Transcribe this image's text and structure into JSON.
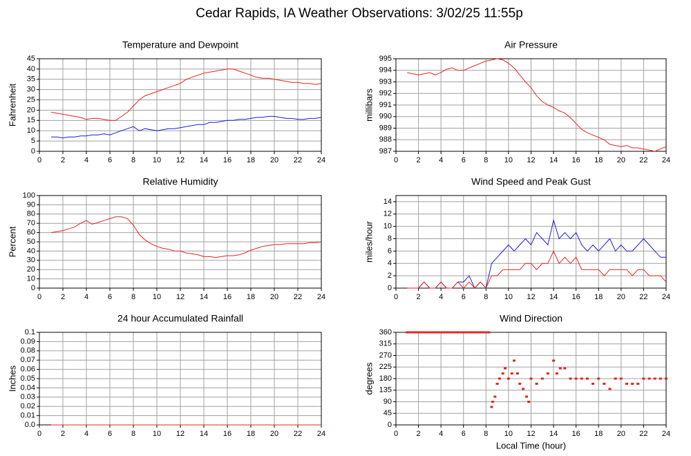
{
  "title": "Cedar Rapids, IA Weather Observations: 3/02/25 11:55p",
  "chart_data": [
    {
      "type": "line",
      "title": "Temperature and Dewpoint",
      "ylabel": "Fahrenheit",
      "x": [
        1,
        1.5,
        2,
        2.5,
        3,
        3.5,
        4,
        4.5,
        5,
        5.5,
        6,
        6.5,
        7,
        7.5,
        8,
        8.5,
        9,
        9.5,
        10,
        10.5,
        11,
        11.5,
        12,
        12.5,
        13,
        13.5,
        14,
        14.5,
        15,
        15.5,
        16,
        16.5,
        17,
        17.5,
        18,
        18.5,
        19,
        19.5,
        20,
        20.5,
        21,
        21.5,
        22,
        22.5,
        23,
        23.5,
        24
      ],
      "series": [
        {
          "color": "#e8211d",
          "values": [
            19,
            18.5,
            18,
            17.5,
            17,
            16.5,
            15.5,
            16,
            16,
            15.5,
            15,
            15,
            17,
            19,
            22,
            25,
            27,
            28,
            29,
            30,
            31,
            32,
            33,
            35,
            36,
            37,
            38,
            38.5,
            39,
            39.5,
            40,
            40,
            39,
            38,
            37,
            36,
            35.5,
            35.5,
            35,
            34.5,
            34,
            33.5,
            33.5,
            33,
            33,
            32.5,
            33
          ]
        },
        {
          "color": "#1a1ad8",
          "values": [
            7,
            7,
            6.5,
            7,
            7,
            7.5,
            7.5,
            8,
            8,
            8.5,
            8,
            9,
            10,
            11,
            12,
            10,
            11,
            10.5,
            10,
            10.5,
            11,
            11,
            11.5,
            12,
            12.5,
            13,
            13,
            14,
            14,
            14.5,
            15,
            15,
            15.5,
            15.5,
            16,
            16.5,
            16.5,
            17,
            17,
            16.5,
            16,
            16,
            15.5,
            15.5,
            16,
            16,
            16.5
          ]
        }
      ],
      "xlim": [
        0,
        24
      ],
      "xticks": [
        0,
        2,
        4,
        6,
        8,
        10,
        12,
        14,
        16,
        18,
        20,
        22,
        24
      ],
      "ylim": [
        0,
        45
      ],
      "yticks": [
        0,
        5,
        10,
        15,
        20,
        25,
        30,
        35,
        40,
        45
      ],
      "grid": true
    },
    {
      "type": "line",
      "title": "Air Pressure",
      "ylabel": "millibars",
      "x": [
        1,
        1.5,
        2,
        2.5,
        3,
        3.5,
        4,
        4.5,
        5,
        5.5,
        6,
        6.5,
        7,
        7.5,
        8,
        8.5,
        9,
        9.5,
        10,
        10.5,
        11,
        11.5,
        12,
        12.5,
        13,
        13.5,
        14,
        14.5,
        15,
        15.5,
        16,
        16.5,
        17,
        17.5,
        18,
        18.5,
        19,
        19.5,
        20,
        20.5,
        21,
        21.5,
        22,
        22.5,
        23,
        23.5,
        24
      ],
      "series": [
        {
          "color": "#e8211d",
          "values": [
            993.8,
            993.7,
            993.6,
            993.7,
            993.8,
            993.6,
            993.8,
            994.1,
            994.2,
            994,
            994,
            994.2,
            994.4,
            994.6,
            994.8,
            994.9,
            995,
            994.9,
            994.6,
            994.2,
            993.6,
            993,
            992.5,
            991.8,
            991.3,
            991,
            990.8,
            990.5,
            990.3,
            989.9,
            989.4,
            988.9,
            988.6,
            988.4,
            988.2,
            988,
            987.6,
            987.5,
            987.4,
            987.5,
            987.3,
            987.3,
            987.2,
            987.1,
            987,
            987.2,
            987.4
          ]
        }
      ],
      "xlim": [
        0,
        24
      ],
      "xticks": [
        0,
        2,
        4,
        6,
        8,
        10,
        12,
        14,
        16,
        18,
        20,
        22,
        24
      ],
      "ylim": [
        987,
        995
      ],
      "yticks": [
        987,
        988,
        989,
        990,
        991,
        992,
        993,
        994,
        995
      ],
      "grid": true
    },
    {
      "type": "line",
      "title": "Relative Humidity",
      "ylabel": "Percent",
      "x": [
        1,
        1.5,
        2,
        2.5,
        3,
        3.5,
        4,
        4.5,
        5,
        5.5,
        6,
        6.5,
        7,
        7.5,
        8,
        8.5,
        9,
        9.5,
        10,
        10.5,
        11,
        11.5,
        12,
        12.5,
        13,
        13.5,
        14,
        14.5,
        15,
        15.5,
        16,
        16.5,
        17,
        17.5,
        18,
        18.5,
        19,
        19.5,
        20,
        20.5,
        21,
        21.5,
        22,
        22.5,
        23,
        23.5,
        24
      ],
      "series": [
        {
          "color": "#e8211d",
          "values": [
            60,
            61,
            62,
            64,
            66,
            70,
            73,
            69,
            71,
            73,
            75,
            77,
            77,
            75,
            68,
            58,
            52,
            48,
            45,
            43,
            42,
            40,
            40,
            38,
            37,
            36,
            34,
            34,
            33,
            34,
            35,
            35,
            36,
            38,
            41,
            43,
            45,
            46,
            47,
            47,
            48,
            48,
            48,
            48,
            49,
            49,
            50
          ]
        }
      ],
      "xlim": [
        0,
        24
      ],
      "xticks": [
        0,
        2,
        4,
        6,
        8,
        10,
        12,
        14,
        16,
        18,
        20,
        22,
        24
      ],
      "ylim": [
        0,
        100
      ],
      "yticks": [
        0,
        10,
        20,
        30,
        40,
        50,
        60,
        70,
        80,
        90,
        100
      ],
      "grid": true
    },
    {
      "type": "line",
      "title": "Wind Speed and Peak Gust",
      "ylabel": "miles/hour",
      "x": [
        1,
        1.5,
        2,
        2.5,
        3,
        3.5,
        4,
        4.5,
        5,
        5.5,
        6,
        6.5,
        7,
        7.5,
        8,
        8.5,
        9,
        9.5,
        10,
        10.5,
        11,
        11.5,
        12,
        12.5,
        13,
        13.5,
        14,
        14.5,
        15,
        15.5,
        16,
        16.5,
        17,
        17.5,
        18,
        18.5,
        19,
        19.5,
        20,
        20.5,
        21,
        21.5,
        22,
        22.5,
        23,
        23.5,
        24
      ],
      "series": [
        {
          "color": "#1a1ad8",
          "values": [
            0,
            0,
            0,
            1,
            0,
            0,
            1,
            0,
            0,
            1,
            1,
            2,
            0,
            1,
            0,
            4,
            5,
            6,
            7,
            6,
            7,
            8,
            7,
            9,
            8,
            7,
            11,
            8,
            9,
            8,
            9,
            7,
            6,
            7,
            6,
            7,
            8,
            6,
            7,
            6,
            6,
            7,
            8,
            7,
            6,
            5,
            5
          ]
        },
        {
          "color": "#e8211d",
          "values": [
            0,
            0,
            0,
            1,
            0,
            0,
            1,
            0,
            0,
            1,
            0,
            1,
            0,
            1,
            0,
            2,
            2,
            3,
            3,
            3,
            3,
            4,
            4,
            3,
            4,
            4,
            6,
            4,
            5,
            4,
            5,
            3,
            3,
            3,
            3,
            2,
            3,
            3,
            3,
            3,
            2,
            3,
            3,
            2,
            2,
            2,
            1
          ]
        }
      ],
      "xlim": [
        0,
        24
      ],
      "xticks": [
        0,
        2,
        4,
        6,
        8,
        10,
        12,
        14,
        16,
        18,
        20,
        22,
        24
      ],
      "ylim": [
        0,
        15
      ],
      "yticks": [
        0,
        2,
        4,
        6,
        8,
        10,
        12,
        14
      ],
      "grid": true
    },
    {
      "type": "line",
      "title": "24 hour Accumulated Rainfall",
      "ylabel": "Inches",
      "x": [
        1,
        24
      ],
      "series": [
        {
          "color": "#e8211d",
          "values": [
            0,
            0
          ]
        }
      ],
      "xlim": [
        0,
        24
      ],
      "xticks": [
        0,
        2,
        4,
        6,
        8,
        10,
        12,
        14,
        16,
        18,
        20,
        22,
        24
      ],
      "ylim": [
        0,
        0.1
      ],
      "yticks": [
        {
          "value": 0,
          "label": "0.0"
        },
        0.01,
        0.02,
        0.03,
        0.04,
        0.05,
        0.06,
        0.07,
        0.08,
        0.09,
        0.1
      ],
      "grid": true
    },
    {
      "type": "scatter",
      "title": "Wind Direction",
      "ylabel": "degrees",
      "xlabel": "Local Time (hour)",
      "x": [
        1,
        1.25,
        1.5,
        1.75,
        2,
        2.25,
        2.5,
        2.75,
        3,
        3.25,
        3.5,
        3.75,
        4,
        4.25,
        4.5,
        4.75,
        5,
        5.25,
        5.5,
        5.75,
        6,
        6.25,
        6.5,
        6.75,
        7,
        7.25,
        7.5,
        7.75,
        8,
        8.25,
        8.5,
        8.6,
        8.8,
        9,
        9.2,
        9.5,
        9.7,
        10,
        10.3,
        10.5,
        10.8,
        11,
        11.3,
        11.6,
        11.8,
        12,
        12.5,
        13,
        13.5,
        14,
        14.3,
        14.6,
        15,
        15.5,
        16,
        16.5,
        17,
        17.5,
        18,
        18.5,
        19,
        19.5,
        20,
        20.5,
        21,
        21.5,
        22,
        22.5,
        23,
        23.5,
        24
      ],
      "series": [
        {
          "color": "#e8211d",
          "values": [
            360,
            360,
            360,
            360,
            360,
            360,
            360,
            360,
            360,
            360,
            360,
            360,
            360,
            360,
            360,
            360,
            360,
            360,
            360,
            360,
            360,
            360,
            360,
            360,
            360,
            360,
            360,
            360,
            360,
            360,
            70,
            90,
            110,
            160,
            180,
            200,
            220,
            180,
            200,
            250,
            200,
            160,
            140,
            110,
            90,
            180,
            160,
            180,
            200,
            250,
            200,
            220,
            220,
            180,
            180,
            180,
            180,
            160,
            180,
            160,
            140,
            180,
            180,
            160,
            160,
            160,
            180,
            180,
            180,
            180,
            180
          ]
        }
      ],
      "xlim": [
        0,
        24
      ],
      "xticks": [
        0,
        2,
        4,
        6,
        8,
        10,
        12,
        14,
        16,
        18,
        20,
        22,
        24
      ],
      "ylim": [
        0,
        360
      ],
      "yticks": [
        0,
        45,
        90,
        135,
        180,
        225,
        270,
        315,
        360
      ],
      "grid": true
    }
  ]
}
